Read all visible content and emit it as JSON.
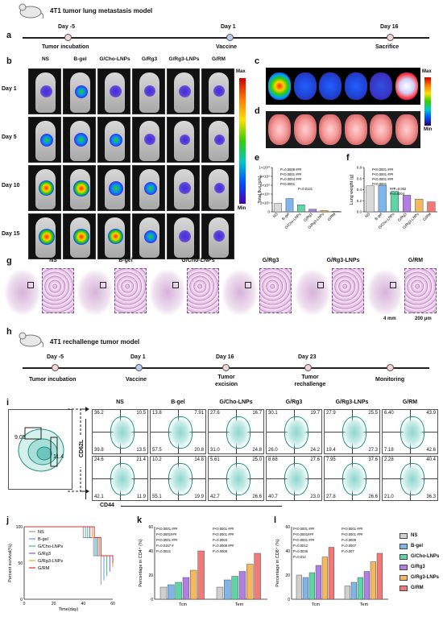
{
  "panel_labels": {
    "a": "a",
    "b": "b",
    "c": "c",
    "d": "d",
    "e": "e",
    "f": "f",
    "g": "g",
    "h": "h",
    "i": "i",
    "j": "j",
    "k": "k",
    "l": "l"
  },
  "model_a": {
    "title": "4T1 tumor lung metastasis model",
    "events": [
      {
        "day": "Day -5",
        "label": "Tumor incubation"
      },
      {
        "day": "Day 1",
        "label": "Vaccine"
      },
      {
        "day": "Day 16",
        "label": "Sacrifice"
      }
    ]
  },
  "groups": [
    "NS",
    "B-gel",
    "G/Cho-LNPs",
    "G/Rg3",
    "G/Rg3-LNPs",
    "G/RM"
  ],
  "ivis_days": [
    "Day 1",
    "Day 5",
    "Day 10",
    "Day 15"
  ],
  "colorbar": {
    "max": "Max",
    "min": "Min"
  },
  "panel_e": {
    "ylabel": "Total flux (p/s)",
    "yticks": [
      "0",
      "2×10⁹",
      "4×10⁹",
      "6×10⁹",
      "8×10⁹",
      "1×10¹⁰"
    ],
    "pvals": [
      "P=0.0009 ###",
      "P<0.0001 ###",
      "P=0.0004 ###",
      "P<0.0001",
      "P=0.0131"
    ]
  },
  "panel_f": {
    "ylabel": "Lung weight (g)",
    "yticks": [
      "0.0",
      "0.2",
      "0.4",
      "0.6",
      "0.8"
    ],
    "pvals": [
      "P<0.0001 ###",
      "P<0.0001 ###",
      "P<0.0001 ###",
      "P<0.0001",
      "##P=0.002",
      "P=0.0004"
    ]
  },
  "chart_data": [
    {
      "type": "bar",
      "categories": [
        "NS",
        "B-gel",
        "G/Cho-LNPs",
        "G/Rg3",
        "G/Rg3-LNPs",
        "G/RM"
      ],
      "values": [
        1900000000.0,
        3000000000.0,
        1600000000.0,
        600000000.0,
        300000000.0,
        100000000.0
      ],
      "ylabel": "Total flux (p/s)",
      "ylim": [
        0,
        10000000000.0
      ]
    },
    {
      "type": "bar",
      "categories": [
        "NS",
        "B-gel",
        "G/Cho-LNPs",
        "G/Rg3",
        "G/Rg3-LNPs",
        "G/RM"
      ],
      "values": [
        0.47,
        0.48,
        0.37,
        0.3,
        0.23,
        0.18
      ],
      "ylabel": "Lung weight (g)",
      "ylim": [
        0,
        0.8
      ]
    },
    {
      "type": "line",
      "xlabel": "Time(day)",
      "ylabel": "Percent survival(%)",
      "xticks": [
        "0",
        "20",
        "40",
        "60"
      ],
      "yticks": [
        "0",
        "50",
        "100"
      ],
      "xlim": [
        0,
        60
      ],
      "ylim": [
        0,
        100
      ],
      "series": [
        {
          "name": "NS",
          "color": "#999999"
        },
        {
          "name": "B-gel",
          "color": "#5aa0e0"
        },
        {
          "name": "G/Cho-LNPs",
          "color": "#3fb58a"
        },
        {
          "name": "G/Rg3",
          "color": "#8a5cc2"
        },
        {
          "name": "G/Rg3-LNPs",
          "color": "#f0a030"
        },
        {
          "name": "G/RM",
          "color": "#e0302a"
        }
      ]
    },
    {
      "type": "bar",
      "categories": [
        "Tcm",
        "Tem"
      ],
      "ylabel": "Percentage in CD4⁺ (%)",
      "ylim": [
        0,
        60
      ],
      "series": [
        {
          "name": "NS",
          "values": [
            10,
            10
          ]
        },
        {
          "name": "B-gel",
          "values": [
            12,
            16
          ]
        },
        {
          "name": "G/Cho-LNPs",
          "values": [
            14,
            19
          ]
        },
        {
          "name": "G/Rg3",
          "values": [
            18,
            23
          ]
        },
        {
          "name": "G/Rg3-LNPs",
          "values": [
            24,
            29
          ]
        },
        {
          "name": "G/RM",
          "values": [
            40,
            38
          ]
        }
      ]
    },
    {
      "type": "bar",
      "categories": [
        "Tcm",
        "Tem"
      ],
      "ylabel": "Percentage in CD8⁺ (%)",
      "ylim": [
        0,
        60
      ],
      "series": [
        {
          "name": "NS",
          "values": [
            20,
            11
          ]
        },
        {
          "name": "B-gel",
          "values": [
            18,
            14
          ]
        },
        {
          "name": "G/Cho-LNPs",
          "values": [
            22,
            18
          ]
        },
        {
          "name": "G/Rg3",
          "values": [
            28,
            23
          ]
        },
        {
          "name": "G/Rg3-LNPs",
          "values": [
            35,
            31
          ]
        },
        {
          "name": "G/RM",
          "values": [
            43,
            38
          ]
        }
      ]
    }
  ],
  "panel_g": {
    "scale1": "4 mm",
    "scale2": "200 μm"
  },
  "model_h": {
    "title": "4T1 rechallenge tumor model",
    "events": [
      {
        "day": "Day -5",
        "label": "Tumor incubation"
      },
      {
        "day": "Day 1",
        "label": "Vaccine"
      },
      {
        "day": "Day 16",
        "label": "Tumor excision"
      },
      {
        "day": "Day 23",
        "label": "Tumor rechallenge"
      },
      {
        "day": "",
        "label": "Monitoring"
      }
    ]
  },
  "panel_i": {
    "gate_vals": [
      "9.05",
      "11.4"
    ],
    "xaxis": "CD44",
    "yaxis": "CD62L",
    "row1": [
      [
        "36.2",
        "10.5",
        "39.8",
        "13.5"
      ],
      [
        "13.8",
        "7.91",
        "57.5",
        "20.8"
      ],
      [
        "27.6",
        "16.7",
        "31.0",
        "24.8"
      ],
      [
        "30.1",
        "19.7",
        "26.0",
        "24.2"
      ],
      [
        "27.9",
        "25.5",
        "19.4",
        "27.3"
      ],
      [
        "6.40",
        "43.9",
        "7.18",
        "42.6"
      ]
    ],
    "row2": [
      [
        "24.6",
        "21.4",
        "42.1",
        "11.9"
      ],
      [
        "10.2",
        "14.8",
        "55.1",
        "19.9"
      ],
      [
        "5.61",
        "25.0",
        "42.7",
        "26.6"
      ],
      [
        "8.68",
        "27.6",
        "40.7",
        "23.0"
      ],
      [
        "7.95",
        "37.6",
        "27.8",
        "26.6"
      ],
      [
        "2.28",
        "40.4",
        "21.0",
        "36.3"
      ]
    ]
  },
  "panel_k": {
    "xcats": [
      "Tcm",
      "Tem"
    ],
    "pvals": [
      "P<0.0001 ###",
      "P<0.0001###",
      "P<0.0001 ###",
      "P=0.0157 #",
      "P=0.0021",
      "P<0.0001 ###",
      "P<0.0001 ###",
      "P=0.0003",
      "P=0.0008 ###",
      "P=0.0006"
    ]
  },
  "panel_l": {
    "xcats": [
      "Tcm",
      "Tem"
    ],
    "pvals": [
      "P<0.0001 ###",
      "P<0.0001###",
      "P<0.0001 ###",
      "P=0.0012",
      "P=0.0036",
      "P=0.012",
      "P<0.0001 ###",
      "P<0.0001 ###",
      "P=0.0009",
      "P=0.0007",
      "P=0.007"
    ]
  },
  "legend": [
    {
      "name": "NS",
      "color": "#cfcfcf"
    },
    {
      "name": "B-gel",
      "color": "#7fb6ea"
    },
    {
      "name": "G/Cho-LNPs",
      "color": "#5fd4a8"
    },
    {
      "name": "G/Rg3",
      "color": "#b07fe0"
    },
    {
      "name": "G/Rg3-LNPs",
      "color": "#f4b860"
    },
    {
      "name": "G/RM",
      "color": "#f07a78"
    }
  ]
}
